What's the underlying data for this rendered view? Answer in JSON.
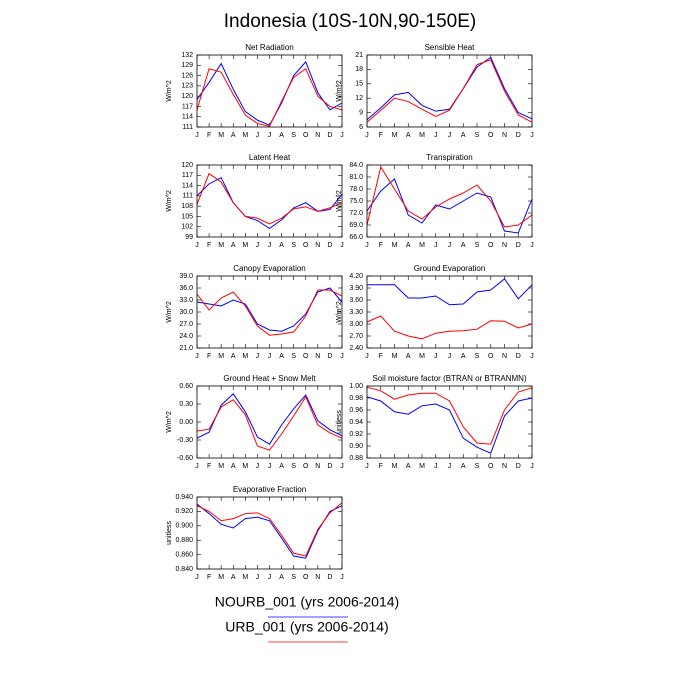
{
  "title": "Indonesia (10S-10N,90-150E)",
  "chart_data": [
    {
      "type": "line",
      "title": "Net Radiation",
      "ylabel": "W/m^2",
      "categories": [
        "J",
        "F",
        "M",
        "A",
        "M",
        "J",
        "J",
        "A",
        "S",
        "O",
        "N",
        "D",
        "J"
      ],
      "ylim": [
        111,
        132
      ],
      "yticks": [
        111,
        114,
        117,
        120,
        123,
        126,
        129,
        132
      ],
      "series": [
        {
          "name": "NOURB_001 (yrs 2006-2014)",
          "color": "#0000ff",
          "values": [
            119,
            124,
            129.5,
            122,
            115.5,
            113,
            111.5,
            118,
            126,
            130,
            121,
            116,
            118
          ]
        },
        {
          "name": "URB_001 (yrs 2006-2014)",
          "color": "#ff0000",
          "values": [
            116,
            128,
            127,
            120.5,
            114.5,
            112,
            111.2,
            118.5,
            125.5,
            128,
            120,
            117,
            116
          ]
        }
      ]
    },
    {
      "type": "line",
      "title": "Sensible Heat",
      "ylabel": "W/m^2",
      "categories": [
        "J",
        "F",
        "M",
        "A",
        "M",
        "J",
        "J",
        "A",
        "S",
        "O",
        "N",
        "D",
        "J"
      ],
      "ylim": [
        6,
        21
      ],
      "yticks": [
        6,
        9,
        12,
        15,
        18,
        21
      ],
      "series": [
        {
          "name": "NOURB_001 (yrs 2006-2014)",
          "color": "#0000ff",
          "values": [
            7.5,
            10,
            12.7,
            13.2,
            10.5,
            9.3,
            9.7,
            14,
            18.5,
            20.5,
            14,
            9,
            7.7
          ]
        },
        {
          "name": "URB_001 (yrs 2006-2014)",
          "color": "#ff0000",
          "values": [
            7,
            9.5,
            12,
            11.3,
            9.7,
            8.2,
            9.5,
            14,
            19,
            20,
            13.5,
            8.5,
            7
          ]
        }
      ]
    },
    {
      "type": "line",
      "title": "Latent Heat",
      "ylabel": "W/m^2",
      "categories": [
        "J",
        "F",
        "M",
        "A",
        "M",
        "J",
        "J",
        "A",
        "S",
        "O",
        "N",
        "D",
        "J"
      ],
      "ylim": [
        99,
        120
      ],
      "yticks": [
        99,
        102,
        105,
        108,
        111,
        114,
        117,
        120
      ],
      "series": [
        {
          "name": "NOURB_001 (yrs 2006-2014)",
          "color": "#0000ff",
          "values": [
            111,
            114.5,
            116.3,
            109,
            105,
            103.8,
            101.5,
            104,
            107.5,
            109,
            106.5,
            107,
            111.5
          ]
        },
        {
          "name": "URB_001 (yrs 2006-2014)",
          "color": "#ff0000",
          "values": [
            108.5,
            117.5,
            115,
            109,
            105,
            104.5,
            102.8,
            104.5,
            107.2,
            107.8,
            106.5,
            107.5,
            109
          ]
        }
      ]
    },
    {
      "type": "line",
      "title": "Transpiration",
      "ylabel": "W/m^2",
      "categories": [
        "J",
        "F",
        "M",
        "A",
        "M",
        "J",
        "J",
        "A",
        "S",
        "O",
        "N",
        "D",
        "J"
      ],
      "ylim": [
        66,
        84
      ],
      "yticks": [
        {
          "value": 66,
          "label": "66.0"
        },
        {
          "value": 69,
          "label": "69.0"
        },
        {
          "value": 72,
          "label": "72.0"
        },
        {
          "value": 75,
          "label": "75.0"
        },
        {
          "value": 78,
          "label": "78.0"
        },
        {
          "value": 81,
          "label": "81.0"
        },
        {
          "value": 84,
          "label": "84.0"
        }
      ],
      "series": [
        {
          "name": "NOURB_001 (yrs 2006-2014)",
          "color": "#0000ff",
          "values": [
            72.5,
            77.5,
            80.5,
            71.5,
            69.5,
            74,
            73,
            75,
            77,
            76,
            67.5,
            67,
            75.5
          ]
        },
        {
          "name": "URB_001 (yrs 2006-2014)",
          "color": "#ff0000",
          "values": [
            69,
            83.5,
            78,
            72.5,
            70.5,
            73.5,
            75.5,
            77,
            79,
            75,
            68.5,
            69,
            71.5
          ]
        }
      ]
    },
    {
      "type": "line",
      "title": "Canopy Evaporation",
      "ylabel": "W/m^2",
      "categories": [
        "J",
        "F",
        "M",
        "A",
        "M",
        "J",
        "J",
        "A",
        "S",
        "O",
        "N",
        "D",
        "J"
      ],
      "ylim": [
        21,
        39
      ],
      "yticks": [
        {
          "value": 21,
          "label": "21.0"
        },
        {
          "value": 24,
          "label": "24.0"
        },
        {
          "value": 27,
          "label": "27.0"
        },
        {
          "value": 30,
          "label": "30.0"
        },
        {
          "value": 33,
          "label": "33.0"
        },
        {
          "value": 36,
          "label": "36.0"
        },
        {
          "value": 39,
          "label": "39.0"
        }
      ],
      "series": [
        {
          "name": "NOURB_001 (yrs 2006-2014)",
          "color": "#0000ff",
          "values": [
            32.5,
            32,
            31.5,
            33,
            32,
            27,
            25.5,
            25.2,
            26.5,
            29.5,
            35,
            36,
            32.5
          ]
        },
        {
          "name": "URB_001 (yrs 2006-2014)",
          "color": "#ff0000",
          "values": [
            34.5,
            30.5,
            33.5,
            35,
            31.5,
            26.5,
            24.2,
            24.5,
            25,
            29,
            35.5,
            35.5,
            34
          ]
        }
      ]
    },
    {
      "type": "line",
      "title": "Ground Evaporation",
      "ylabel": "W/m^2",
      "categories": [
        "J",
        "F",
        "M",
        "A",
        "M",
        "J",
        "J",
        "A",
        "S",
        "O",
        "N",
        "D",
        "J"
      ],
      "ylim": [
        2.4,
        4.2
      ],
      "yticks": [
        {
          "value": 2.4,
          "label": "2.40"
        },
        {
          "value": 2.7,
          "label": "2.70"
        },
        {
          "value": 3.0,
          "label": "3.00"
        },
        {
          "value": 3.3,
          "label": "3.30"
        },
        {
          "value": 3.6,
          "label": "3.60"
        },
        {
          "value": 3.9,
          "label": "3.90"
        },
        {
          "value": 4.2,
          "label": "4.20"
        }
      ],
      "series": [
        {
          "name": "NOURB_001 (yrs 2006-2014)",
          "color": "#0000ff",
          "values": [
            3.98,
            3.98,
            3.98,
            3.65,
            3.65,
            3.7,
            3.48,
            3.5,
            3.8,
            3.85,
            4.13,
            3.63,
            3.98
          ]
        },
        {
          "name": "URB_001 (yrs 2006-2014)",
          "color": "#ff0000",
          "values": [
            3.05,
            3.2,
            2.82,
            2.7,
            2.63,
            2.77,
            2.82,
            2.83,
            2.87,
            3.08,
            3.07,
            2.9,
            3.0
          ]
        }
      ]
    },
    {
      "type": "line",
      "title": "Ground Heat + Snow Melt",
      "ylabel": "W/m^2",
      "categories": [
        "J",
        "F",
        "M",
        "A",
        "M",
        "J",
        "J",
        "A",
        "S",
        "O",
        "N",
        "D",
        "J"
      ],
      "ylim": [
        -0.6,
        0.6
      ],
      "yticks": [
        {
          "value": -0.6,
          "label": "-0.60"
        },
        {
          "value": -0.3,
          "label": "-0.30"
        },
        {
          "value": 0,
          "label": "0.00"
        },
        {
          "value": 0.3,
          "label": "0.30"
        },
        {
          "value": 0.6,
          "label": "0.60"
        }
      ],
      "series": [
        {
          "name": "NOURB_001 (yrs 2006-2014)",
          "color": "#0000ff",
          "values": [
            -0.27,
            -0.17,
            0.28,
            0.47,
            0.17,
            -0.25,
            -0.37,
            -0.05,
            0.22,
            0.45,
            0.02,
            -0.13,
            -0.23
          ]
        },
        {
          "name": "URB_001 (yrs 2006-2014)",
          "color": "#ff0000",
          "values": [
            -0.15,
            -0.12,
            0.25,
            0.37,
            0.12,
            -0.4,
            -0.47,
            -0.2,
            0.1,
            0.42,
            -0.05,
            -0.18,
            -0.27
          ]
        }
      ]
    },
    {
      "type": "line",
      "title": "Soil moisture factor (BTRAN or BTRANMN)",
      "ylabel": "unitless",
      "categories": [
        "J",
        "F",
        "M",
        "A",
        "M",
        "J",
        "J",
        "A",
        "S",
        "O",
        "N",
        "D",
        "J"
      ],
      "ylim": [
        0.88,
        1.0
      ],
      "yticks": [
        0.88,
        {
          "value": 0.9,
          "label": "0.90"
        },
        0.92,
        0.94,
        0.96,
        0.98,
        {
          "value": 1.0,
          "label": "1.00"
        }
      ],
      "series": [
        {
          "name": "NOURB_001 (yrs 2006-2014)",
          "color": "#0000ff",
          "values": [
            0.982,
            0.975,
            0.957,
            0.953,
            0.967,
            0.97,
            0.96,
            0.913,
            0.898,
            0.888,
            0.95,
            0.975,
            0.98
          ]
        },
        {
          "name": "URB_001 (yrs 2006-2014)",
          "color": "#ff0000",
          "values": [
            0.998,
            0.992,
            0.978,
            0.985,
            0.988,
            0.988,
            0.975,
            0.932,
            0.905,
            0.903,
            0.96,
            0.99,
            0.997
          ]
        }
      ]
    },
    {
      "type": "line",
      "title": "Evaporative Fraction",
      "ylabel": "unitless",
      "categories": [
        "J",
        "F",
        "M",
        "A",
        "M",
        "J",
        "J",
        "A",
        "S",
        "O",
        "N",
        "D",
        "J"
      ],
      "ylim": [
        0.84,
        0.94
      ],
      "yticks": [
        {
          "value": 0.84,
          "label": "0.840"
        },
        {
          "value": 0.86,
          "label": "0.860"
        },
        {
          "value": 0.88,
          "label": "0.880"
        },
        {
          "value": 0.9,
          "label": "0.900"
        },
        {
          "value": 0.92,
          "label": "0.920"
        },
        {
          "value": 0.94,
          "label": "0.940"
        }
      ],
      "series": [
        {
          "name": "NOURB_001 (yrs 2006-2014)",
          "color": "#0000ff",
          "values": [
            0.93,
            0.917,
            0.902,
            0.897,
            0.91,
            0.912,
            0.907,
            0.883,
            0.858,
            0.855,
            0.893,
            0.92,
            0.928
          ]
        },
        {
          "name": "URB_001 (yrs 2006-2014)",
          "color": "#ff0000",
          "values": [
            0.928,
            0.92,
            0.907,
            0.91,
            0.917,
            0.918,
            0.91,
            0.887,
            0.862,
            0.858,
            0.895,
            0.918,
            0.932
          ]
        }
      ]
    }
  ]
}
